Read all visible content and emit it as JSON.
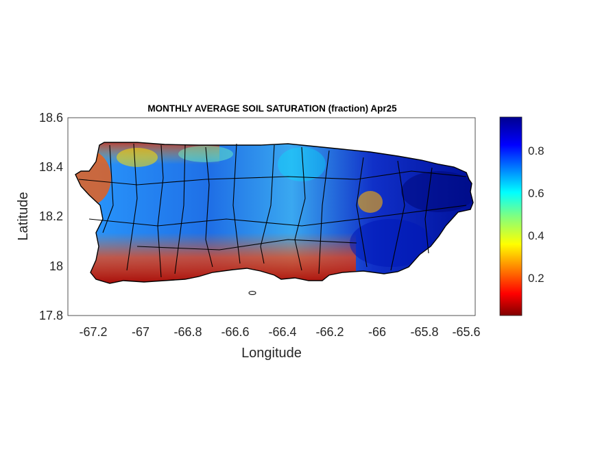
{
  "figure": {
    "title": "MONTHLY AVERAGE SOIL SATURATION (fraction) Apr25",
    "xlabel": "Longitude",
    "ylabel": "Latitude",
    "xticks": [
      "-67.2",
      "-67",
      "-66.8",
      "-66.6",
      "-66.4",
      "-66.2",
      "-66",
      "-65.8",
      "-65.6"
    ],
    "yticks": [
      "18.6",
      "18.4",
      "18.2",
      "18",
      "17.8"
    ],
    "xlim": [
      -67.3,
      -65.58
    ],
    "ylim": [
      17.8,
      18.6
    ],
    "colorbar": {
      "ticks": [
        "0.8",
        "0.6",
        "0.4",
        "0.2"
      ],
      "range": [
        0.0,
        0.95
      ],
      "colormap": "jet"
    },
    "colors": {
      "wet": "#00008f",
      "mid": "#00c0ff",
      "dry": "#800000",
      "boundary": "#000000"
    }
  }
}
